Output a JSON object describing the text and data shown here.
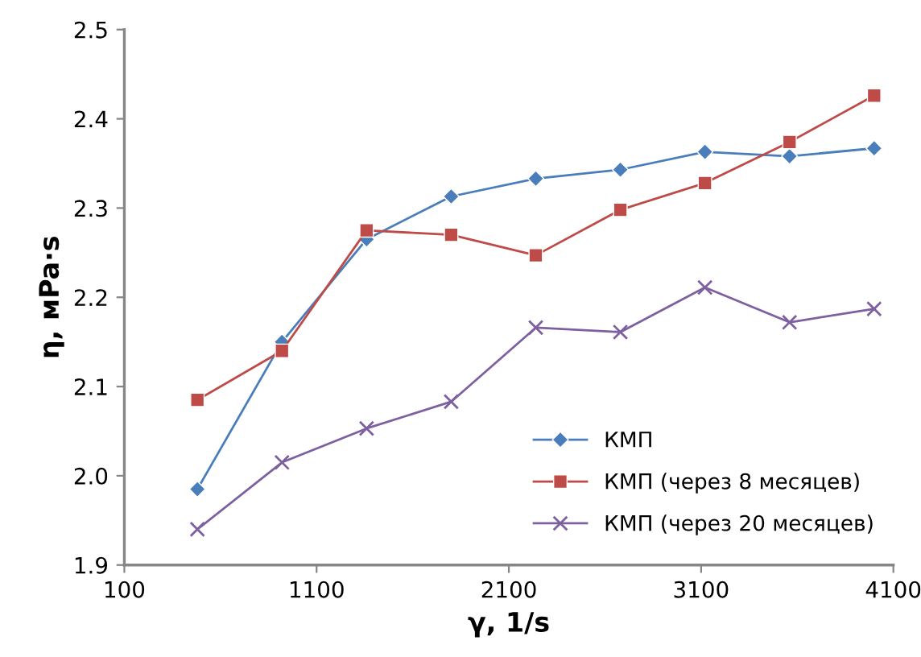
{
  "chart_data": {
    "type": "line",
    "xlabel": "γ, 1/s",
    "ylabel": "η, мPa·s",
    "x": [
      480,
      920,
      1360,
      1800,
      2240,
      2680,
      3120,
      3560,
      4000
    ],
    "series": [
      {
        "name": "КМП",
        "color": "#4a7ebb",
        "marker": "diamond",
        "values": [
          1.985,
          2.15,
          2.265,
          2.313,
          2.333,
          2.343,
          2.363,
          2.358,
          2.367
        ]
      },
      {
        "name": "КМП (через 8 месяцев)",
        "color": "#be4b48",
        "marker": "square",
        "values": [
          2.085,
          2.14,
          2.275,
          2.27,
          2.247,
          2.298,
          2.328,
          2.374,
          2.426
        ]
      },
      {
        "name": "КМП (через 20 месяцев)",
        "color": "#7d60a0",
        "marker": "cross",
        "values": [
          1.94,
          2.015,
          2.053,
          2.083,
          2.166,
          2.161,
          2.211,
          2.172,
          2.187
        ]
      }
    ],
    "xlim": [
      100,
      4100
    ],
    "xticks": [
      100,
      1100,
      2100,
      3100,
      4100
    ],
    "ylim": [
      1.9,
      2.5
    ],
    "yticks": [
      1.9,
      {
        "value": 2,
        "label": "2.0"
      },
      2.1,
      2.2,
      2.3,
      2.4,
      2.5
    ],
    "grid": false,
    "legend": "bottom right"
  }
}
